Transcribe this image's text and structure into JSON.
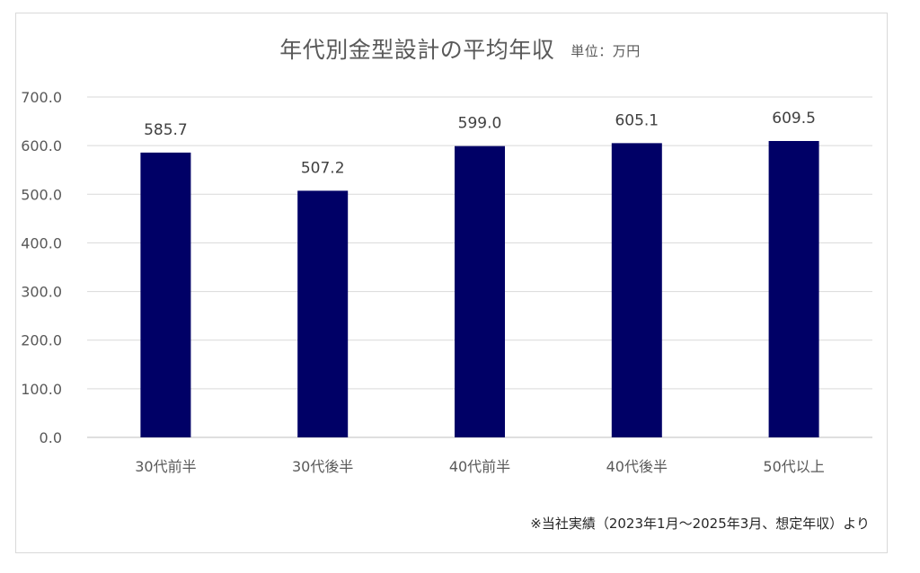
{
  "chart_data": {
    "type": "bar",
    "title": "年代別金型設計の平均年収",
    "unit_label": "単位：万円",
    "categories": [
      "30代前半",
      "30代後半",
      "40代前半",
      "40代後半",
      "50代以上"
    ],
    "values": [
      585.7,
      507.2,
      599.0,
      605.1,
      609.5
    ],
    "value_labels": [
      "585.7",
      "507.2",
      "599.0",
      "605.1",
      "609.5"
    ],
    "y_ticks": [
      "0.0",
      "100.0",
      "200.0",
      "300.0",
      "400.0",
      "500.0",
      "600.0",
      "700.0"
    ],
    "ylim": [
      0,
      700
    ],
    "grid": true,
    "legend": "none",
    "bar_color": "#000066",
    "footnote": "※当社実績（2023年1月～2025年3月、想定年収）より"
  }
}
